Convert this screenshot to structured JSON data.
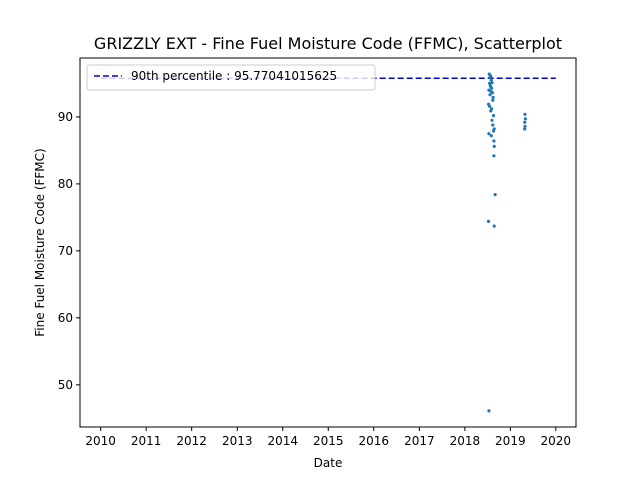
{
  "chart_data": {
    "type": "scatter",
    "title": "GRIZZLY EXT - Fine Fuel Moisture Code (FFMC), Scatterplot",
    "xlabel": "Date",
    "ylabel": "Fine Fuel Moisture Code (FFMC)",
    "xlim": [
      "2009-07-19",
      "2020-06-11"
    ],
    "ylim": [
      43.7,
      98.8
    ],
    "x_ticks": [
      "2010",
      "2011",
      "2012",
      "2013",
      "2014",
      "2015",
      "2016",
      "2017",
      "2018",
      "2019",
      "2020"
    ],
    "y_ticks": [
      50,
      60,
      70,
      80,
      90
    ],
    "grid": false,
    "legend_position": "top-left",
    "reference_line": {
      "label": "90th percentile : 95.77041015625",
      "value": 95.77041015625,
      "x_start": "2010-01-01",
      "x_end": "2020-01-01",
      "style": "dashed",
      "color": "#0000cc"
    },
    "series": [
      {
        "color": "#1f77b4",
        "points": [
          {
            "x": "2018-07-16",
            "y": 96.4
          },
          {
            "x": "2018-07-22",
            "y": 95.9
          },
          {
            "x": "2018-07-28",
            "y": 96.1
          },
          {
            "x": "2018-08-01",
            "y": 95.5
          },
          {
            "x": "2018-08-07",
            "y": 95.1
          },
          {
            "x": "2018-07-19",
            "y": 95.0
          },
          {
            "x": "2018-07-25",
            "y": 94.6
          },
          {
            "x": "2018-08-04",
            "y": 94.3
          },
          {
            "x": "2018-07-13",
            "y": 94.0
          },
          {
            "x": "2018-07-31",
            "y": 93.8
          },
          {
            "x": "2018-08-10",
            "y": 93.6
          },
          {
            "x": "2018-07-22",
            "y": 93.3
          },
          {
            "x": "2018-08-16",
            "y": 92.9
          },
          {
            "x": "2018-08-13",
            "y": 92.5
          },
          {
            "x": "2018-07-10",
            "y": 91.9
          },
          {
            "x": "2018-07-19",
            "y": 91.6
          },
          {
            "x": "2018-08-04",
            "y": 91.2
          },
          {
            "x": "2018-07-28",
            "y": 90.9
          },
          {
            "x": "2018-08-19",
            "y": 90.2
          },
          {
            "x": "2018-08-07",
            "y": 89.5
          },
          {
            "x": "2018-08-13",
            "y": 88.8
          },
          {
            "x": "2018-08-25",
            "y": 88.2
          },
          {
            "x": "2018-08-19",
            "y": 87.9
          },
          {
            "x": "2018-07-13",
            "y": 87.5
          },
          {
            "x": "2018-08-01",
            "y": 87.2
          },
          {
            "x": "2018-08-22",
            "y": 86.4
          },
          {
            "x": "2018-08-25",
            "y": 85.6
          },
          {
            "x": "2018-08-22",
            "y": 84.2
          },
          {
            "x": "2018-09-01",
            "y": 78.4
          },
          {
            "x": "2018-07-10",
            "y": 74.4
          },
          {
            "x": "2018-08-25",
            "y": 73.7
          },
          {
            "x": "2018-07-13",
            "y": 46.1
          },
          {
            "x": "2019-04-29",
            "y": 90.4
          },
          {
            "x": "2019-05-02",
            "y": 89.7
          },
          {
            "x": "2019-04-26",
            "y": 89.2
          },
          {
            "x": "2019-04-29",
            "y": 88.6
          },
          {
            "x": "2019-04-26",
            "y": 88.2
          }
        ]
      }
    ]
  }
}
